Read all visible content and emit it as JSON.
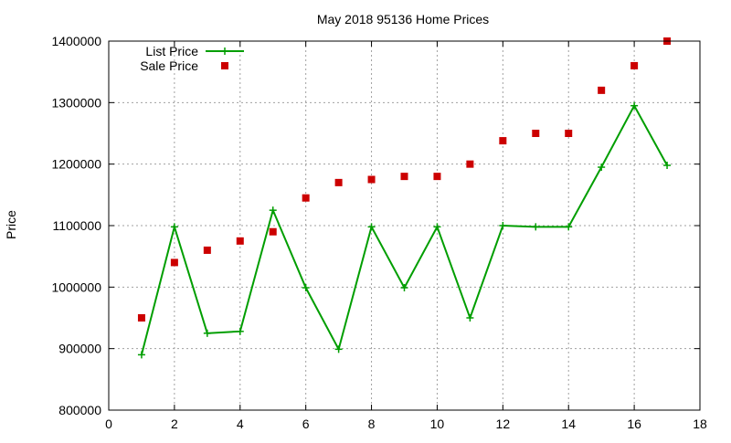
{
  "chart_data": {
    "type": "line",
    "title": "May 2018 95136 Home Prices",
    "xlabel": "",
    "ylabel": "Price",
    "xlim": [
      0,
      18
    ],
    "ylim": [
      800000,
      1400000
    ],
    "xticks": [
      0,
      2,
      4,
      6,
      8,
      10,
      12,
      14,
      16,
      18
    ],
    "yticks": [
      800000,
      900000,
      1000000,
      1100000,
      1200000,
      1300000,
      1400000
    ],
    "grid": true,
    "legend_position": "top-left",
    "series": [
      {
        "name": "List Price",
        "style": "line-with-plus-markers",
        "color": "#009e00",
        "x": [
          1,
          2,
          3,
          4,
          5,
          6,
          7,
          8,
          9,
          10,
          11,
          12,
          13,
          14,
          15,
          16,
          17
        ],
        "y": [
          890000,
          1098000,
          925000,
          928000,
          1125000,
          999000,
          899000,
          1098000,
          999000,
          1098000,
          950000,
          1100000,
          1098000,
          1098000,
          1195000,
          1295000,
          1198000
        ]
      },
      {
        "name": "Sale Price",
        "style": "square-markers",
        "color": "#cc0000",
        "x": [
          1,
          2,
          3,
          4,
          5,
          6,
          7,
          8,
          9,
          10,
          11,
          12,
          13,
          14,
          15,
          16,
          17
        ],
        "y": [
          950000,
          1040000,
          1060000,
          1075000,
          1090000,
          1145000,
          1170000,
          1175000,
          1180000,
          1180000,
          1200000,
          1238000,
          1250000,
          1250000,
          1320000,
          1360000,
          1400000
        ]
      }
    ]
  }
}
